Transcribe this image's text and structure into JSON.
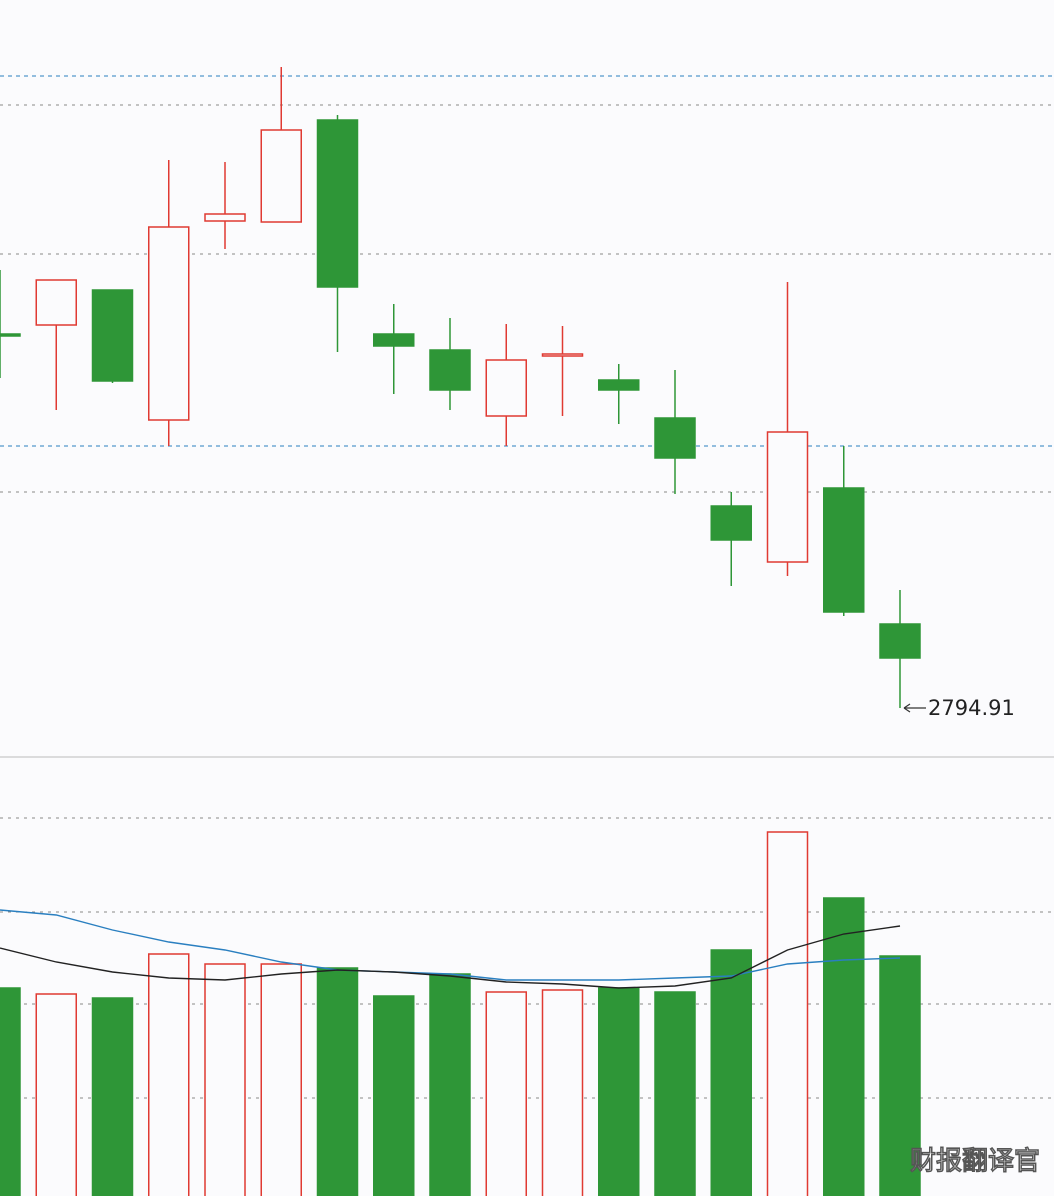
{
  "chart_data": [
    {
      "type": "candlestick",
      "open": [
        2888.41,
        2890.66,
        2899.41,
        2866.91,
        2916.66,
        2916.41,
        2941.91,
        2888.41,
        2884.41,
        2867.91,
        2882.91,
        2876.91,
        2867.41,
        2845.41,
        2831.41,
        2849.91,
        2815.91
      ],
      "high": [
        2904.41,
        2901.91,
        2899.41,
        2931.91,
        2931.41,
        2955.16,
        2943.16,
        2895.91,
        2892.41,
        2890.91,
        2890.41,
        2880.91,
        2879.41,
        2848.91,
        2901.41,
        2860.41,
        2824.41
      ],
      "low": [
        2877.41,
        2869.41,
        2876.16,
        2860.41,
        2909.66,
        2916.41,
        2883.91,
        2873.41,
        2869.41,
        2860.41,
        2867.91,
        2865.91,
        2848.41,
        2825.41,
        2827.91,
        2817.91,
        2794.91
      ],
      "close": [
        2887.91,
        2901.91,
        2876.66,
        2915.16,
        2918.41,
        2939.41,
        2900.16,
        2885.41,
        2874.41,
        2881.91,
        2883.41,
        2874.41,
        2857.41,
        2836.91,
        2863.91,
        2818.91,
        2807.41
      ],
      "up_color": "#e03a32",
      "down_color": "#2e9637",
      "ylim": [
        2782.66,
        2971.91
      ]
    },
    {
      "type": "volume",
      "values": [
        208,
        202,
        198,
        242,
        232,
        232,
        228,
        200,
        222,
        204,
        206,
        208,
        204,
        246,
        364,
        298,
        240
      ],
      "series": [
        {
          "color": "#2a7fc0",
          "values": [
            286,
            281,
            266,
            254,
            246,
            234,
            226,
            224,
            222,
            216,
            216,
            216,
            218,
            220,
            232,
            236,
            238
          ]
        },
        {
          "color": "#222222",
          "values": [
            248,
            234,
            224,
            218,
            216,
            222,
            226,
            224,
            220,
            214,
            212,
            208,
            210,
            218,
            246,
            262,
            270
          ]
        }
      ],
      "ylim": [
        0,
        436
      ],
      "watermark": "财报翻译官"
    }
  ]
}
